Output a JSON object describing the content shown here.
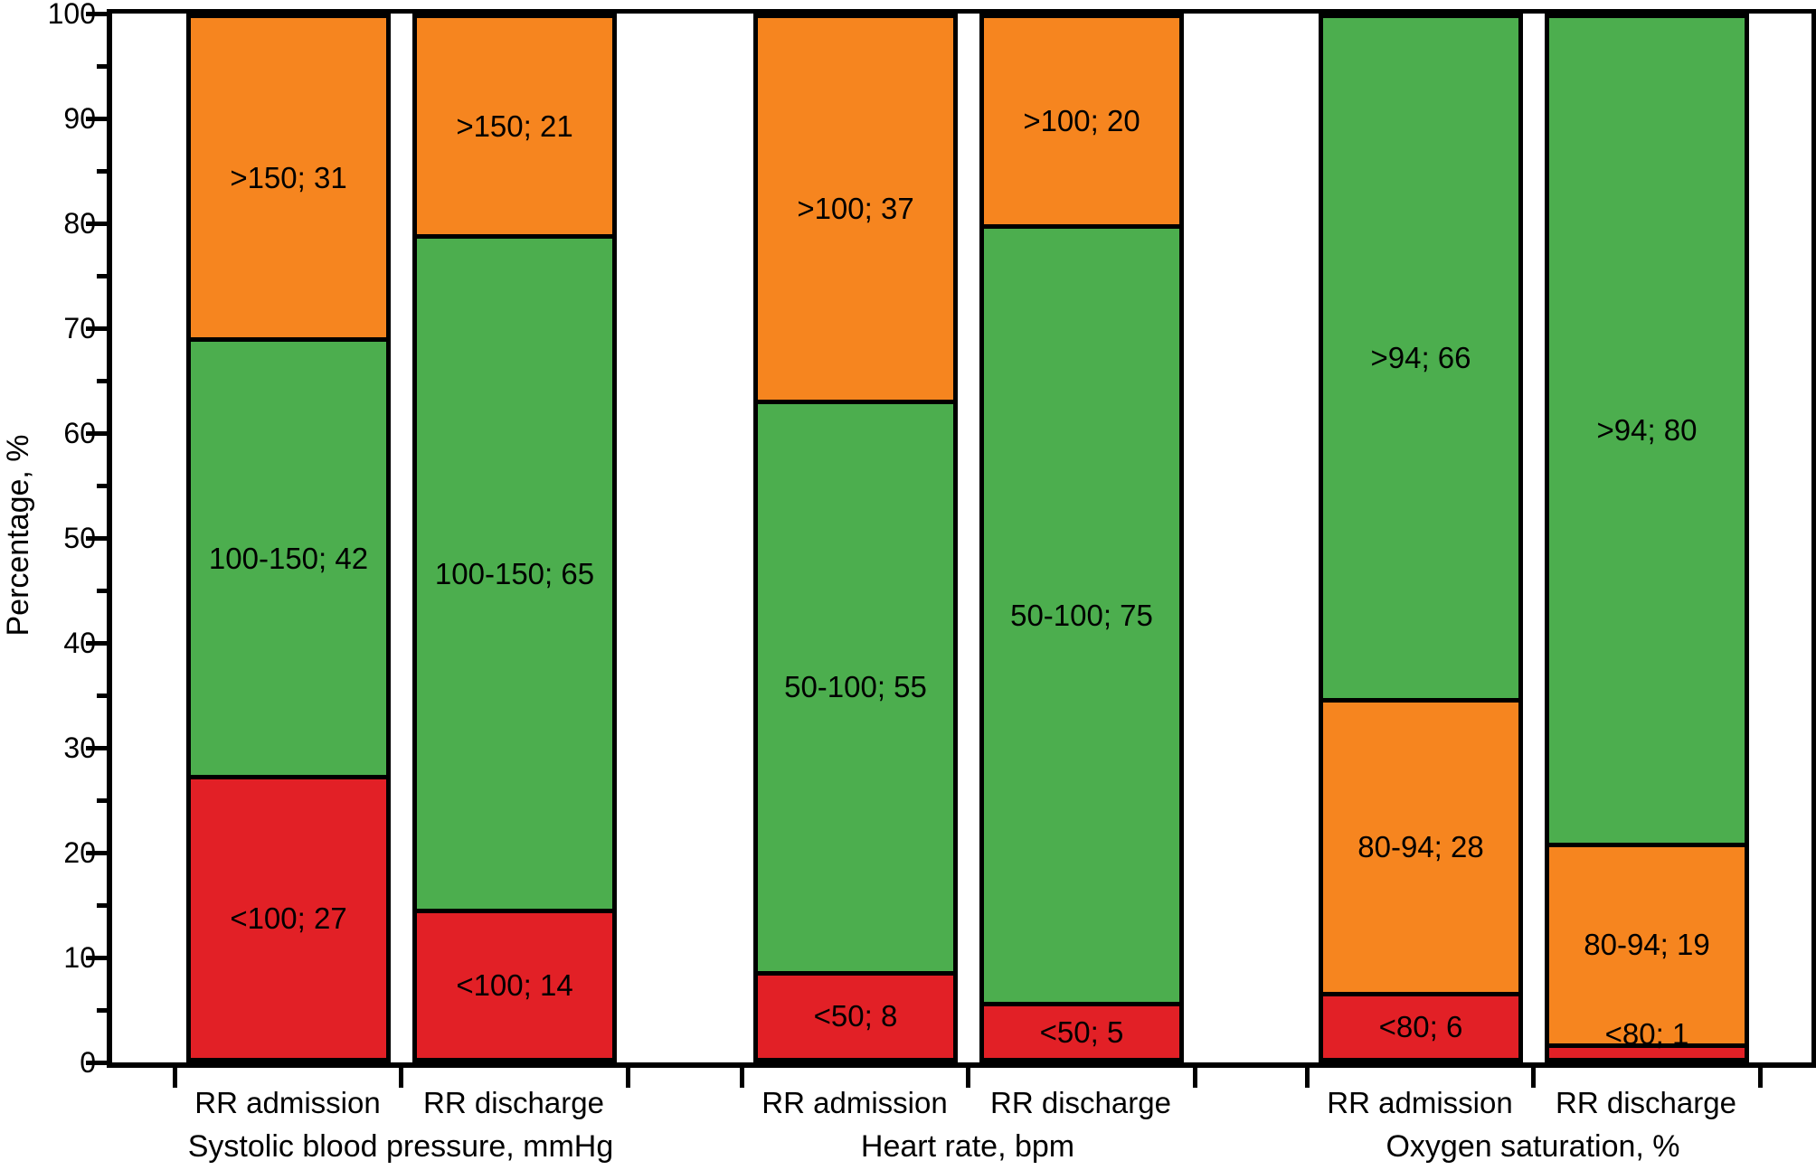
{
  "figure": {
    "background": "#FFFFFF"
  },
  "chart_data": {
    "type": "bar",
    "subtype": "stacked-vertical-percent",
    "title": "",
    "xlabel": "",
    "ylabel": "Percentage, %",
    "ylim": [
      0,
      100
    ],
    "y_major_ticks": [
      0,
      10,
      20,
      30,
      40,
      50,
      60,
      70,
      80,
      90,
      100
    ],
    "y_minor_tick_step": 5,
    "grid": false,
    "legend": "none",
    "frame": "full-box",
    "palette": {
      "red": "#E22026",
      "orange": "#F6851F",
      "green": "#4CAE4E",
      "axis": "#000000",
      "text": "#000000"
    },
    "segment_label_format": "range; value",
    "groups": [
      {
        "label": "Systolic blood pressure, mmHg",
        "bars": [
          {
            "label": "RR admission",
            "segments": [
              {
                "label": "<100; 27",
                "range": "<100",
                "value": 27,
                "color": "red"
              },
              {
                "label": "100-150; 42",
                "range": "100-150",
                "value": 42,
                "color": "green"
              },
              {
                "label": ">150; 31",
                "range": ">150",
                "value": 31,
                "color": "orange"
              }
            ]
          },
          {
            "label": "RR discharge",
            "segments": [
              {
                "label": "<100; 14",
                "range": "<100",
                "value": 14,
                "color": "red"
              },
              {
                "label": "100-150; 65",
                "range": "100-150",
                "value": 65,
                "color": "green"
              },
              {
                "label": ">150; 21",
                "range": ">150",
                "value": 21,
                "color": "orange"
              }
            ]
          }
        ]
      },
      {
        "label": "Heart rate, bpm",
        "bars": [
          {
            "label": "RR admission",
            "segments": [
              {
                "label": "<50; 8",
                "range": "<50",
                "value": 8,
                "color": "red"
              },
              {
                "label": "50-100; 55",
                "range": "50-100",
                "value": 55,
                "color": "green"
              },
              {
                "label": ">100; 37",
                "range": ">100",
                "value": 37,
                "color": "orange"
              }
            ]
          },
          {
            "label": "RR discharge",
            "segments": [
              {
                "label": "<50; 5",
                "range": "<50",
                "value": 5,
                "color": "red"
              },
              {
                "label": "50-100; 75",
                "range": "50-100",
                "value": 75,
                "color": "green"
              },
              {
                "label": ">100; 20",
                "range": ">100",
                "value": 20,
                "color": "orange"
              }
            ]
          }
        ]
      },
      {
        "label": "Oxygen saturation, %",
        "bars": [
          {
            "label": "RR admission",
            "segments": [
              {
                "label": "<80; 6",
                "range": "<80",
                "value": 6,
                "color": "red"
              },
              {
                "label": "80-94; 28",
                "range": "80-94",
                "value": 28,
                "color": "orange"
              },
              {
                "label": ">94; 66",
                "range": ">94",
                "value": 66,
                "color": "green"
              }
            ]
          },
          {
            "label": "RR discharge",
            "segments": [
              {
                "label": "<80; 1",
                "range": "<80",
                "value": 1,
                "color": "red"
              },
              {
                "label": "80-94; 19",
                "range": "80-94",
                "value": 19,
                "color": "orange"
              },
              {
                "label": ">94; 80",
                "range": ">94",
                "value": 80,
                "color": "green"
              }
            ]
          }
        ]
      }
    ]
  }
}
